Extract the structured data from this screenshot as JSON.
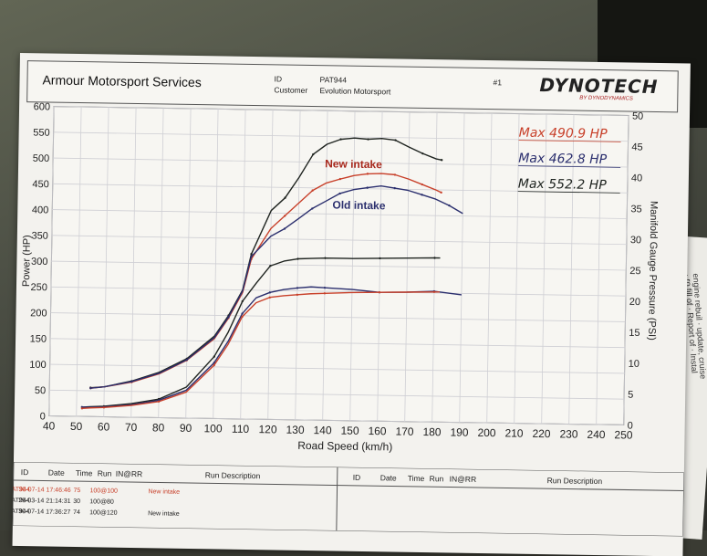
{
  "header": {
    "company": "Armour Motorsport Services",
    "id_label": "ID",
    "id_value": "PAT944",
    "customer_label": "Customer",
    "customer_value": "Evolution Motorsport",
    "sheet_no": "#1",
    "logo_main": "DYNOTECH",
    "logo_sub": "BY DYNODYNAMICS"
  },
  "side_text": "engine rebuil · update, cruise · ro fill of · Report of · Instal",
  "chart_data": {
    "type": "line",
    "xlabel": "Road Speed (km/h)",
    "ylabel": "Power (HP)",
    "y2label": "Manifold Gauge Pressure (PSI)",
    "xlim": [
      40,
      250
    ],
    "ylim": [
      0,
      600
    ],
    "y2lim": [
      0,
      50
    ],
    "xticks": [
      40,
      50,
      60,
      70,
      80,
      90,
      100,
      110,
      120,
      130,
      140,
      150,
      160,
      170,
      180,
      190,
      200,
      210,
      220,
      230,
      240,
      250
    ],
    "yticks": [
      0,
      50,
      100,
      150,
      200,
      250,
      300,
      350,
      400,
      450,
      500,
      550,
      600
    ],
    "y2ticks": [
      0,
      5,
      10,
      15,
      20,
      25,
      30,
      35,
      40,
      45,
      50
    ],
    "grid": true,
    "legend": [
      {
        "text": "Max 490.9 HP",
        "color": "#c8402a"
      },
      {
        "text": "Max 462.8 HP",
        "color": "#2b2f6e"
      },
      {
        "text": "Max 552.2 HP",
        "color": "#1f2420"
      }
    ],
    "annotations": [
      {
        "text": "New intake",
        "color": "#a8281c"
      },
      {
        "text": "Old intake",
        "color": "#2b2f6e"
      }
    ],
    "series": [
      {
        "axis": "power",
        "color": "#1f2420",
        "x": [
          55,
          60,
          70,
          80,
          90,
          100,
          105,
          110,
          113,
          120,
          125,
          130,
          135,
          140,
          145,
          150,
          155,
          160,
          165,
          170,
          175,
          180,
          182
        ],
        "y": [
          56,
          58,
          70,
          88,
          115,
          160,
          200,
          250,
          320,
          405,
          430,
          470,
          515,
          535,
          545,
          548,
          546,
          548,
          545,
          532,
          520,
          510,
          508
        ]
      },
      {
        "axis": "power",
        "color": "#c8402a",
        "x": [
          55,
          60,
          70,
          80,
          90,
          100,
          105,
          110,
          113,
          120,
          125,
          130,
          135,
          140,
          145,
          150,
          155,
          160,
          165,
          170,
          175,
          180,
          182
        ],
        "y": [
          55,
          58,
          68,
          85,
          112,
          155,
          195,
          245,
          310,
          370,
          395,
          420,
          445,
          460,
          468,
          475,
          479,
          480,
          478,
          470,
          460,
          450,
          445
        ]
      },
      {
        "axis": "power",
        "color": "#2b2f6e",
        "x": [
          55,
          60,
          70,
          80,
          90,
          100,
          105,
          110,
          113,
          120,
          125,
          130,
          135,
          140,
          145,
          150,
          155,
          160,
          165,
          170,
          175,
          180,
          185,
          190
        ],
        "y": [
          55,
          58,
          69,
          86,
          113,
          157,
          197,
          248,
          315,
          355,
          370,
          390,
          410,
          425,
          440,
          448,
          452,
          456,
          452,
          448,
          440,
          432,
          420,
          405
        ]
      },
      {
        "axis": "boost",
        "color": "#1f2420",
        "x": [
          52,
          55,
          60,
          70,
          80,
          90,
          100,
          105,
          110,
          115,
          120,
          125,
          130,
          135,
          140,
          150,
          160,
          170,
          180,
          182
        ],
        "y": [
          1.5,
          1.6,
          1.7,
          2.2,
          3,
          5,
          10,
          14,
          19,
          22,
          24.8,
          25.6,
          26,
          26.1,
          26.2,
          26.2,
          26.3,
          26.4,
          26.5,
          26.5
        ]
      },
      {
        "axis": "boost",
        "color": "#2b2f6e",
        "x": [
          52,
          55,
          60,
          70,
          80,
          90,
          100,
          105,
          110,
          115,
          120,
          125,
          130,
          135,
          140,
          150,
          160,
          170,
          180,
          190
        ],
        "y": [
          1.5,
          1.5,
          1.6,
          2,
          2.8,
          4.5,
          9,
          12.5,
          17,
          19.6,
          20.5,
          21,
          21.3,
          21.5,
          21.4,
          21.2,
          20.8,
          20.9,
          21.1,
          20.6
        ]
      },
      {
        "axis": "boost",
        "color": "#c8402a",
        "x": [
          52,
          55,
          60,
          70,
          80,
          90,
          100,
          105,
          110,
          115,
          120,
          125,
          130,
          135,
          140,
          150,
          160,
          170,
          180,
          182
        ],
        "y": [
          1.3,
          1.4,
          1.5,
          1.9,
          2.6,
          4.2,
          8.6,
          12,
          16.5,
          18.8,
          19.7,
          20,
          20.2,
          20.4,
          20.5,
          20.7,
          20.8,
          20.9,
          21.0,
          21.0
        ]
      }
    ]
  },
  "runs": {
    "headers_left": [
      "ID",
      "Date",
      "Time",
      "Run",
      "IN@RR",
      "Run Description"
    ],
    "headers_right": [
      "ID",
      "Date",
      "Time",
      "Run",
      "IN@RR",
      "Run Description"
    ],
    "rows": [
      [
        "PAT944",
        "30-07-14",
        "17:46:46",
        "75",
        "100@100",
        "New intake"
      ],
      [
        "PAT944",
        "25-03-14",
        "21:14:31",
        "30",
        "100@80",
        ""
      ],
      [
        "PAT944",
        "30-07-14",
        "17:36:27",
        "74",
        "100@120",
        "New intake"
      ]
    ]
  }
}
